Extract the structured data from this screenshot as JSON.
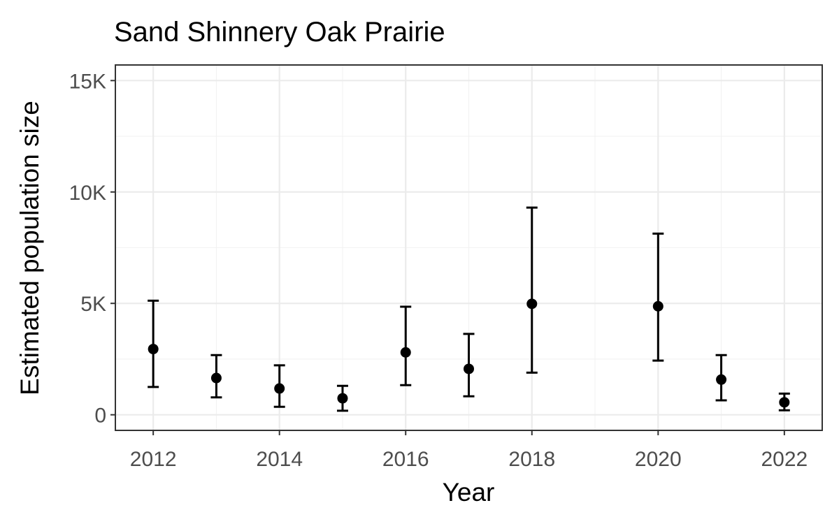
{
  "chart_data": {
    "type": "scatter",
    "title": "Sand Shinnery Oak Prairie",
    "xlabel": "Year",
    "ylabel": "Estimated population size",
    "xlim": [
      2011.4,
      2022.6
    ],
    "ylim": [
      -700,
      15700
    ],
    "x_ticks": [
      2012,
      2014,
      2016,
      2018,
      2020,
      2022
    ],
    "x_tick_labels": [
      "2012",
      "2014",
      "2016",
      "2018",
      "2020",
      "2022"
    ],
    "y_ticks": [
      0,
      5000,
      10000,
      15000
    ],
    "y_tick_labels": [
      "0",
      "5K",
      "10K",
      "15K"
    ],
    "grid": true,
    "legend": "none",
    "series": [
      {
        "x": [
          2012,
          2013,
          2014,
          2015,
          2016,
          2017,
          2018,
          2020,
          2021,
          2022
        ],
        "y": [
          2950,
          1650,
          1180,
          740,
          2800,
          2060,
          4980,
          4870,
          1580,
          560
        ],
        "lower": [
          1250,
          780,
          360,
          180,
          1330,
          830,
          1890,
          2430,
          650,
          200
        ],
        "upper": [
          5120,
          2680,
          2220,
          1300,
          4850,
          3630,
          9300,
          8130,
          2680,
          950
        ]
      }
    ]
  }
}
